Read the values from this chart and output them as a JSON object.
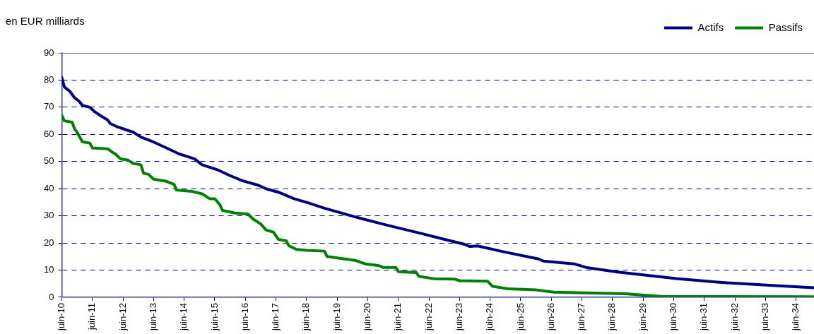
{
  "chart_data": {
    "type": "line",
    "ylabel": "en EUR milliards",
    "legend": "top right",
    "grid": "y",
    "marker": "none",
    "line_style": "solid",
    "xlim": [
      "2010-06",
      "2035-01"
    ],
    "ylim": [
      0,
      90
    ],
    "yticks": [
      0,
      10,
      20,
      30,
      40,
      50,
      60,
      70,
      80,
      90
    ],
    "xticks": [
      {
        "value": "2010-06",
        "label": "juin-10"
      },
      {
        "value": "2011-06",
        "label": "juin-11"
      },
      {
        "value": "2012-06",
        "label": "juin-12"
      },
      {
        "value": "2013-06",
        "label": "juin-13"
      },
      {
        "value": "2014-06",
        "label": "juin-14"
      },
      {
        "value": "2015-06",
        "label": "juin-15"
      },
      {
        "value": "2016-06",
        "label": "juin-16"
      },
      {
        "value": "2017-06",
        "label": "juin-17"
      },
      {
        "value": "2018-06",
        "label": "juin-18"
      },
      {
        "value": "2019-06",
        "label": "juin-19"
      },
      {
        "value": "2020-06",
        "label": "juin-20"
      },
      {
        "value": "2021-06",
        "label": "juin-21"
      },
      {
        "value": "2022-06",
        "label": "juin-22"
      },
      {
        "value": "2023-06",
        "label": "juin-23"
      },
      {
        "value": "2024-06",
        "label": "juin-24"
      },
      {
        "value": "2025-06",
        "label": "juin-25"
      },
      {
        "value": "2026-06",
        "label": "juin-26"
      },
      {
        "value": "2027-06",
        "label": "juin-27"
      },
      {
        "value": "2028-06",
        "label": "juin-28"
      },
      {
        "value": "2029-06",
        "label": "juin-29"
      },
      {
        "value": "2030-06",
        "label": "juin-30"
      },
      {
        "value": "2031-06",
        "label": "juin-31"
      },
      {
        "value": "2032-06",
        "label": "juin-32"
      },
      {
        "value": "2033-06",
        "label": "juin-33"
      },
      {
        "value": "2034-06",
        "label": "juin-34"
      }
    ],
    "series": [
      {
        "name": "Actifs",
        "color": "#000080",
        "x": [
          "2010-06",
          "2010-07",
          "2010-09",
          "2010-11",
          "2011-01",
          "2011-02",
          "2011-05",
          "2011-07",
          "2011-09",
          "2011-12",
          "2012-01",
          "2012-04",
          "2012-10",
          "2013-01",
          "2013-05",
          "2013-08",
          "2013-11",
          "2014-04",
          "2014-10",
          "2015-01",
          "2015-07",
          "2015-12",
          "2016-05",
          "2016-11",
          "2017-02",
          "2017-07",
          "2018-01",
          "2018-07",
          "2019-01",
          "2020-01",
          "2021-01",
          "2022-03",
          "2022-11",
          "2023-08",
          "2023-10",
          "2024-01",
          "2024-11",
          "2026-01",
          "2026-03",
          "2027-03",
          "2027-08",
          "2028-08",
          "2030-07",
          "2032-03",
          "2033-10",
          "2035-01"
        ],
        "values": [
          81,
          77.5,
          76,
          73.5,
          72,
          70.7,
          70,
          68.3,
          67,
          65.3,
          64,
          62.7,
          60.8,
          59,
          57.6,
          56.3,
          55,
          52.8,
          51,
          48.8,
          47,
          44.8,
          42.9,
          41.3,
          40,
          38.7,
          36.3,
          34.7,
          32.8,
          29.6,
          26.7,
          23.5,
          21.6,
          19.5,
          18.7,
          18.9,
          16.8,
          14.1,
          13.3,
          12.3,
          10.9,
          9.3,
          6.9,
          5.3,
          4.3,
          3.5
        ]
      },
      {
        "name": "Passifs",
        "color": "#008000",
        "x": [
          "2010-06",
          "2010-07",
          "2010-10",
          "2010-11",
          "2010-12",
          "2011-02",
          "2011-05",
          "2011-06",
          "2011-12",
          "2012-02",
          "2012-03",
          "2012-05",
          "2012-08",
          "2012-10",
          "2013-01",
          "2013-02",
          "2013-04",
          "2013-06",
          "2013-11",
          "2014-02",
          "2014-03",
          "2014-09",
          "2015-01",
          "2015-04",
          "2015-06",
          "2015-08",
          "2015-09",
          "2016-02",
          "2016-07",
          "2016-09",
          "2016-12",
          "2017-02",
          "2017-05",
          "2017-07",
          "2017-10",
          "2017-11",
          "2018-02",
          "2018-06",
          "2019-01",
          "2019-02",
          "2020-01",
          "2020-05",
          "2020-10",
          "2020-12",
          "2021-05",
          "2021-06",
          "2022-01",
          "2022-02",
          "2022-08",
          "2023-04",
          "2023-06",
          "2024-05",
          "2024-07",
          "2025-01",
          "2025-12",
          "2026-07",
          "2027-04",
          "2028-11",
          "2030-01",
          "2035-01"
        ],
        "values": [
          67,
          65,
          64.5,
          62,
          60.8,
          57.3,
          56.8,
          55,
          54.7,
          53.3,
          52.8,
          51,
          50.5,
          49.3,
          48.8,
          45.7,
          45.3,
          43.5,
          42.7,
          41.6,
          39.5,
          39,
          38.1,
          36.3,
          36.3,
          34.1,
          32,
          31,
          30.7,
          28.8,
          27,
          24.8,
          24,
          21.3,
          20.8,
          19,
          17.6,
          17.3,
          17,
          15,
          13.6,
          12.3,
          11.7,
          11,
          11,
          9.4,
          9.1,
          7.7,
          6.8,
          6.7,
          6.1,
          5.9,
          4,
          3.1,
          2.7,
          1.9,
          1.7,
          1.3,
          0.3,
          0.2
        ]
      }
    ]
  }
}
